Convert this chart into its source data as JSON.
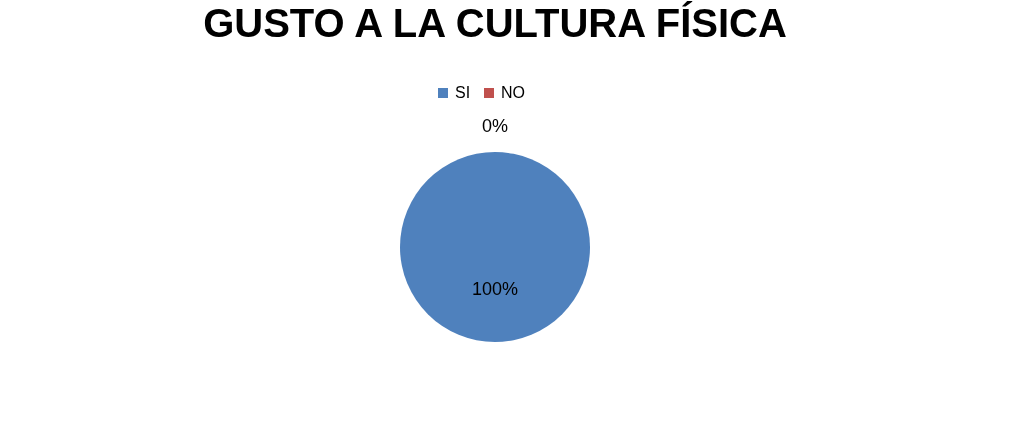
{
  "chart_data": {
    "type": "pie",
    "title": "GUSTO A LA CULTURA FÍSICA",
    "categories": [
      "SI",
      "NO"
    ],
    "values": [
      100,
      0
    ],
    "value_labels": [
      "100%",
      "0%"
    ],
    "colors": [
      "#4f81bd",
      "#c0504d"
    ],
    "legend": "top"
  }
}
